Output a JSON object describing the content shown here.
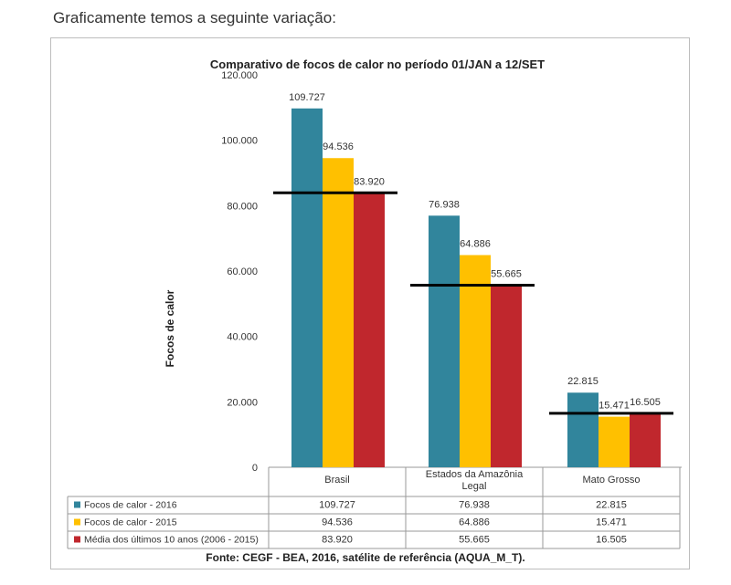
{
  "intro_text": "Graficamente temos a seguinte variação:",
  "source_text": "Fonte: CEGF - BEA, 2016, satélite de referência (AQUA_M_T).",
  "colors": {
    "focos_2016": "#31859C",
    "focos_2015": "#FFC000",
    "media": "#C0272D",
    "average_line": "#000000",
    "grid": "#d9d9d9"
  },
  "chart_data": {
    "type": "bar",
    "title": "Comparativo de focos de calor no período 01/JAN a 12/SET",
    "ylabel": "Focos de calor",
    "xlabel": "",
    "ylim": [
      0,
      120000
    ],
    "yticks": [
      0,
      20000,
      40000,
      60000,
      80000,
      100000,
      120000
    ],
    "ytick_labels": [
      "0",
      "20.000",
      "40.000",
      "60.000",
      "80.000",
      "100.000",
      "120.000"
    ],
    "categories": [
      "Brasil",
      "Estados da Amazônia Legal",
      "Mato Grosso"
    ],
    "series": [
      {
        "name": "Focos de calor - 2016",
        "values": [
          109727,
          76938,
          22815
        ],
        "labels": [
          "109.727",
          "76.938",
          "22.815"
        ]
      },
      {
        "name": "Focos de calor - 2015",
        "values": [
          94536,
          64886,
          15471
        ],
        "labels": [
          "94.536",
          "64.886",
          "15.471"
        ]
      },
      {
        "name": "Média dos últimos 10 anos (2006 - 2015)",
        "values": [
          83920,
          55665,
          16505
        ],
        "labels": [
          "83.920",
          "55.665",
          "16.505"
        ]
      }
    ],
    "average_reference_lines": [
      83920,
      55665,
      16505
    ],
    "grid": false,
    "legend": "data-table"
  }
}
